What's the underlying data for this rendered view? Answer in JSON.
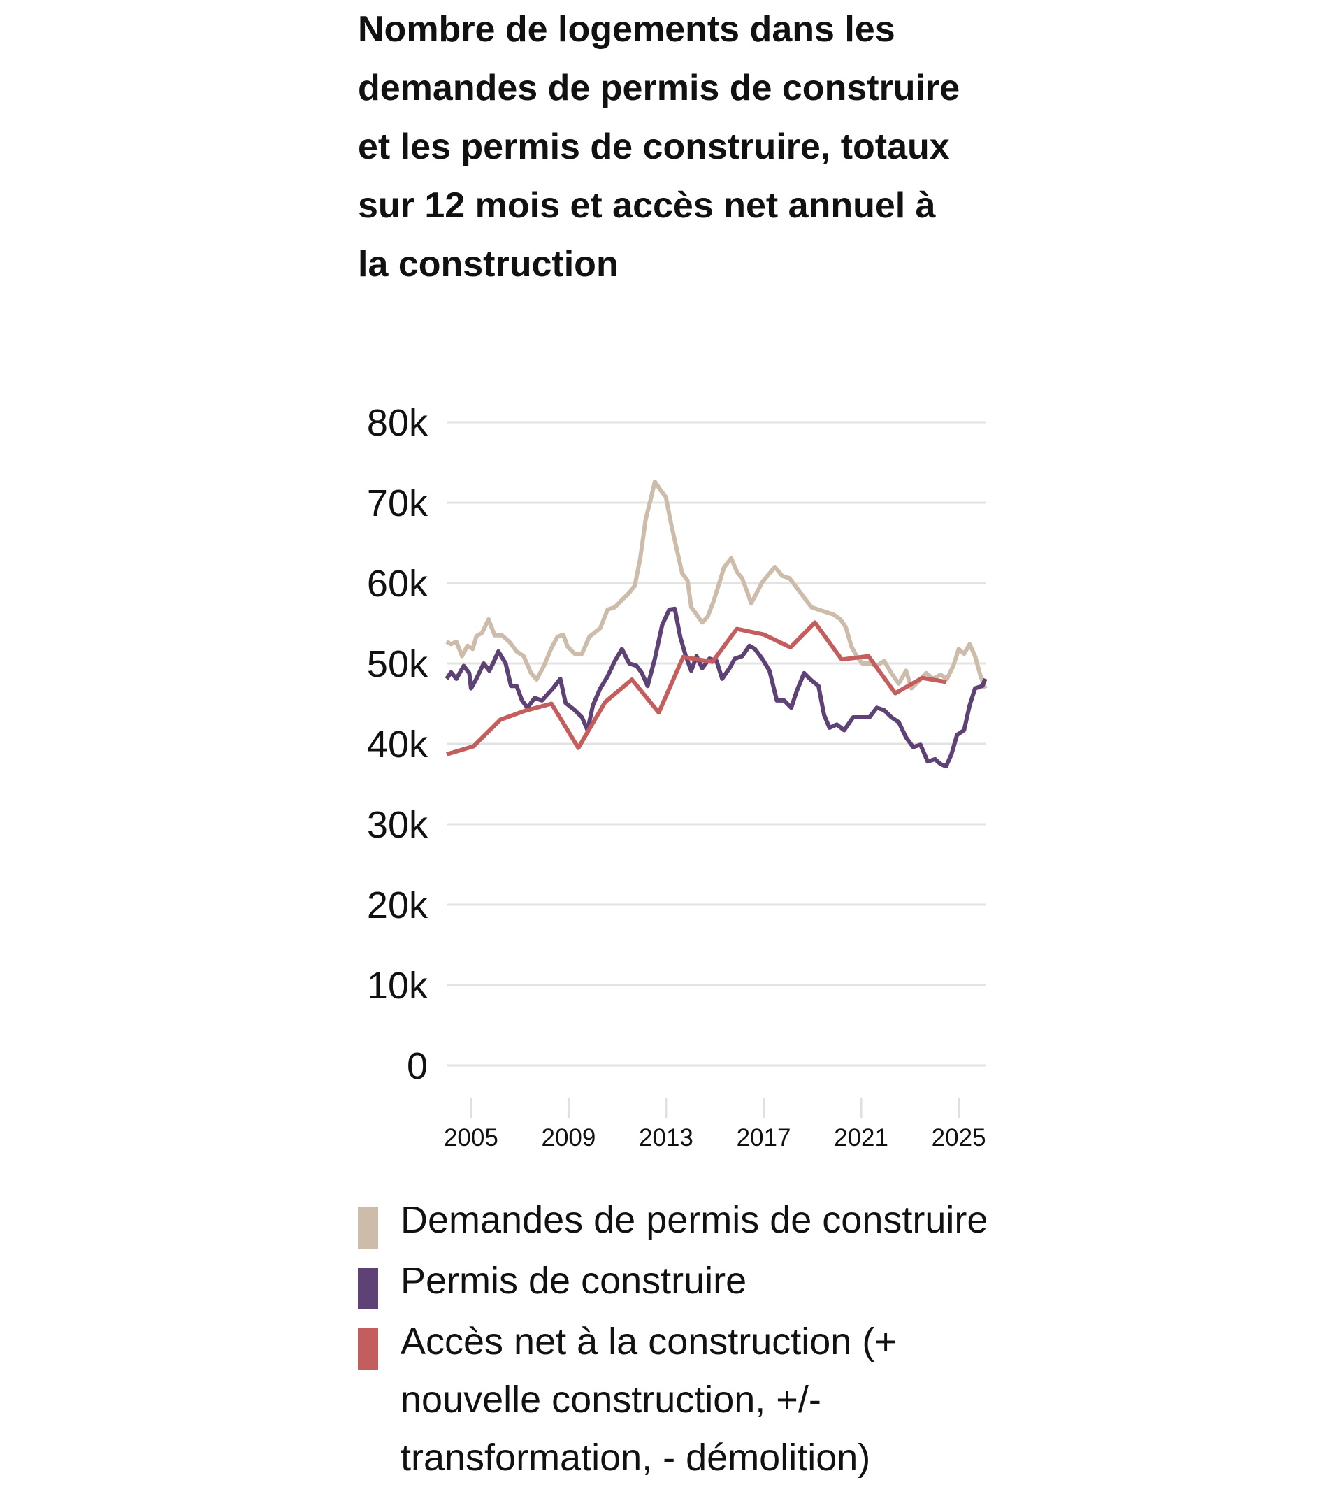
{
  "title": "Nombre de logements dans les demandes de permis de construire et les permis de construire, totaux sur 12 mois et accès net annuel à la construction",
  "chart_data": {
    "type": "line",
    "title": "Nombre de logements dans les demandes de permis de construire et les permis de construire, totaux sur 12 mois et accès net annuel à la construction",
    "xlabel": "",
    "ylabel": "",
    "xlim": [
      2004.0,
      2026.1
    ],
    "ylim": [
      0,
      80000
    ],
    "y_ticks": [
      0,
      10000,
      20000,
      30000,
      40000,
      50000,
      60000,
      70000,
      80000
    ],
    "y_tick_labels": [
      "0",
      "10k",
      "20k",
      "30k",
      "40k",
      "50k",
      "60k",
      "70k",
      "80k"
    ],
    "x_ticks": [
      2005,
      2009,
      2013,
      2017,
      2021,
      2025
    ],
    "x_tick_labels": [
      "2005",
      "2009",
      "2013",
      "2017",
      "2021",
      "2025"
    ],
    "grid": "horizontal",
    "legend_position": "bottom",
    "series": [
      {
        "name": "Demandes de permis de construire",
        "color": "#cdbcaa",
        "points": [
          [
            2004.0,
            52700
          ],
          [
            2004.18,
            52400
          ],
          [
            2004.4,
            52700
          ],
          [
            2004.63,
            50900
          ],
          [
            2004.85,
            52200
          ],
          [
            2005.07,
            51800
          ],
          [
            2005.22,
            53400
          ],
          [
            2005.45,
            53800
          ],
          [
            2005.72,
            55500
          ],
          [
            2005.97,
            53500
          ],
          [
            2006.27,
            53500
          ],
          [
            2006.57,
            52700
          ],
          [
            2006.87,
            51500
          ],
          [
            2007.16,
            50900
          ],
          [
            2007.46,
            48800
          ],
          [
            2007.69,
            48000
          ],
          [
            2007.99,
            49700
          ],
          [
            2008.28,
            51800
          ],
          [
            2008.54,
            53300
          ],
          [
            2008.78,
            53600
          ],
          [
            2008.96,
            52100
          ],
          [
            2009.25,
            51200
          ],
          [
            2009.55,
            51200
          ],
          [
            2009.85,
            53300
          ],
          [
            2010.3,
            54400
          ],
          [
            2010.6,
            56700
          ],
          [
            2010.9,
            57000
          ],
          [
            2011.19,
            57900
          ],
          [
            2011.49,
            58800
          ],
          [
            2011.72,
            59700
          ],
          [
            2011.94,
            63100
          ],
          [
            2012.16,
            67900
          ],
          [
            2012.39,
            70700
          ],
          [
            2012.54,
            72600
          ],
          [
            2012.76,
            71600
          ],
          [
            2012.99,
            70700
          ],
          [
            2013.21,
            67300
          ],
          [
            2013.43,
            64300
          ],
          [
            2013.66,
            61200
          ],
          [
            2013.88,
            60300
          ],
          [
            2014.03,
            57000
          ],
          [
            2014.25,
            56100
          ],
          [
            2014.48,
            55100
          ],
          [
            2014.7,
            55800
          ],
          [
            2014.93,
            57600
          ],
          [
            2015.15,
            59700
          ],
          [
            2015.37,
            61900
          ],
          [
            2015.67,
            63100
          ],
          [
            2015.9,
            61400
          ],
          [
            2016.12,
            60600
          ],
          [
            2016.34,
            58800
          ],
          [
            2016.49,
            57500
          ],
          [
            2016.72,
            58800
          ],
          [
            2016.94,
            60100
          ],
          [
            2017.16,
            60900
          ],
          [
            2017.46,
            62000
          ],
          [
            2017.76,
            60900
          ],
          [
            2018.06,
            60600
          ],
          [
            2018.36,
            59400
          ],
          [
            2018.66,
            58200
          ],
          [
            2018.96,
            57000
          ],
          [
            2019.25,
            56700
          ],
          [
            2019.55,
            56400
          ],
          [
            2019.85,
            56100
          ],
          [
            2020.15,
            55500
          ],
          [
            2020.37,
            54500
          ],
          [
            2020.6,
            52100
          ],
          [
            2020.82,
            50900
          ],
          [
            2021.04,
            50000
          ],
          [
            2021.34,
            50000
          ],
          [
            2021.64,
            49700
          ],
          [
            2021.94,
            50300
          ],
          [
            2022.24,
            48800
          ],
          [
            2022.54,
            47500
          ],
          [
            2022.84,
            49100
          ],
          [
            2023.06,
            46900
          ],
          [
            2023.36,
            47800
          ],
          [
            2023.66,
            48800
          ],
          [
            2023.96,
            48100
          ],
          [
            2024.25,
            48600
          ],
          [
            2024.52,
            48100
          ],
          [
            2024.78,
            49700
          ],
          [
            2025.0,
            51800
          ],
          [
            2025.22,
            51200
          ],
          [
            2025.45,
            52400
          ],
          [
            2025.67,
            50900
          ],
          [
            2025.9,
            48400
          ],
          [
            2026.09,
            46900
          ]
        ]
      },
      {
        "name": "Permis de construire",
        "color": "#5e4275",
        "points": [
          [
            2004.0,
            48100
          ],
          [
            2004.18,
            48900
          ],
          [
            2004.4,
            48100
          ],
          [
            2004.7,
            49700
          ],
          [
            2004.93,
            48800
          ],
          [
            2005.0,
            46900
          ],
          [
            2005.22,
            48100
          ],
          [
            2005.52,
            50000
          ],
          [
            2005.75,
            49100
          ],
          [
            2005.9,
            50000
          ],
          [
            2006.12,
            51500
          ],
          [
            2006.42,
            50000
          ],
          [
            2006.64,
            47200
          ],
          [
            2006.87,
            47200
          ],
          [
            2007.09,
            45400
          ],
          [
            2007.31,
            44500
          ],
          [
            2007.61,
            45700
          ],
          [
            2007.91,
            45400
          ],
          [
            2008.36,
            46900
          ],
          [
            2008.66,
            48100
          ],
          [
            2008.88,
            45100
          ],
          [
            2009.25,
            44200
          ],
          [
            2009.55,
            43300
          ],
          [
            2009.78,
            41700
          ],
          [
            2010.0,
            44800
          ],
          [
            2010.3,
            46900
          ],
          [
            2010.6,
            48400
          ],
          [
            2010.9,
            50300
          ],
          [
            2011.19,
            51800
          ],
          [
            2011.49,
            50000
          ],
          [
            2011.79,
            49700
          ],
          [
            2012.01,
            48800
          ],
          [
            2012.24,
            47200
          ],
          [
            2012.54,
            50600
          ],
          [
            2012.84,
            54800
          ],
          [
            2013.13,
            56700
          ],
          [
            2013.36,
            56800
          ],
          [
            2013.58,
            53300
          ],
          [
            2013.81,
            50900
          ],
          [
            2014.03,
            49100
          ],
          [
            2014.25,
            50900
          ],
          [
            2014.48,
            49400
          ],
          [
            2014.78,
            50600
          ],
          [
            2015.07,
            50300
          ],
          [
            2015.3,
            48100
          ],
          [
            2015.6,
            49400
          ],
          [
            2015.82,
            50600
          ],
          [
            2016.12,
            50900
          ],
          [
            2016.42,
            52200
          ],
          [
            2016.64,
            51800
          ],
          [
            2016.94,
            50600
          ],
          [
            2017.24,
            49100
          ],
          [
            2017.54,
            45400
          ],
          [
            2017.84,
            45400
          ],
          [
            2018.13,
            44500
          ],
          [
            2018.36,
            46600
          ],
          [
            2018.66,
            48800
          ],
          [
            2018.96,
            47900
          ],
          [
            2019.25,
            47200
          ],
          [
            2019.48,
            43600
          ],
          [
            2019.7,
            42000
          ],
          [
            2020.0,
            42400
          ],
          [
            2020.3,
            41700
          ],
          [
            2020.67,
            43300
          ],
          [
            2021.04,
            43300
          ],
          [
            2021.34,
            43300
          ],
          [
            2021.64,
            44500
          ],
          [
            2021.94,
            44200
          ],
          [
            2022.24,
            43300
          ],
          [
            2022.54,
            42700
          ],
          [
            2022.84,
            40800
          ],
          [
            2023.13,
            39600
          ],
          [
            2023.43,
            39900
          ],
          [
            2023.73,
            37800
          ],
          [
            2024.03,
            38100
          ],
          [
            2024.25,
            37500
          ],
          [
            2024.48,
            37200
          ],
          [
            2024.7,
            38700
          ],
          [
            2024.93,
            41100
          ],
          [
            2025.22,
            41700
          ],
          [
            2025.45,
            44800
          ],
          [
            2025.67,
            46900
          ],
          [
            2025.97,
            47200
          ],
          [
            2026.09,
            48100
          ]
        ]
      },
      {
        "name": "Accès net à la construction (+ nouvelle construction, +/- transformation, - démolition)",
        "color": "#c45d5d",
        "points": [
          [
            2004.0,
            38700
          ],
          [
            2005.1,
            39700
          ],
          [
            2006.2,
            43000
          ],
          [
            2007.2,
            44100
          ],
          [
            2008.3,
            45000
          ],
          [
            2009.4,
            39500
          ],
          [
            2010.5,
            45200
          ],
          [
            2011.6,
            48000
          ],
          [
            2012.7,
            43900
          ],
          [
            2013.7,
            50800
          ],
          [
            2014.9,
            50200
          ],
          [
            2015.9,
            54300
          ],
          [
            2017.0,
            53600
          ],
          [
            2018.1,
            52000
          ],
          [
            2019.1,
            55100
          ],
          [
            2020.2,
            50500
          ],
          [
            2021.3,
            50900
          ],
          [
            2022.4,
            46300
          ],
          [
            2023.5,
            48200
          ],
          [
            2024.5,
            47700
          ]
        ]
      }
    ]
  },
  "legend": {
    "items": [
      {
        "label": "Demandes de permis de construire",
        "color": "#cdbcaa"
      },
      {
        "label": "Permis de construire",
        "color": "#5e4275"
      },
      {
        "label": "Accès net à la construction (+ nouvelle construction, +/- transformation, - démolition)",
        "color": "#c45d5d"
      }
    ]
  }
}
